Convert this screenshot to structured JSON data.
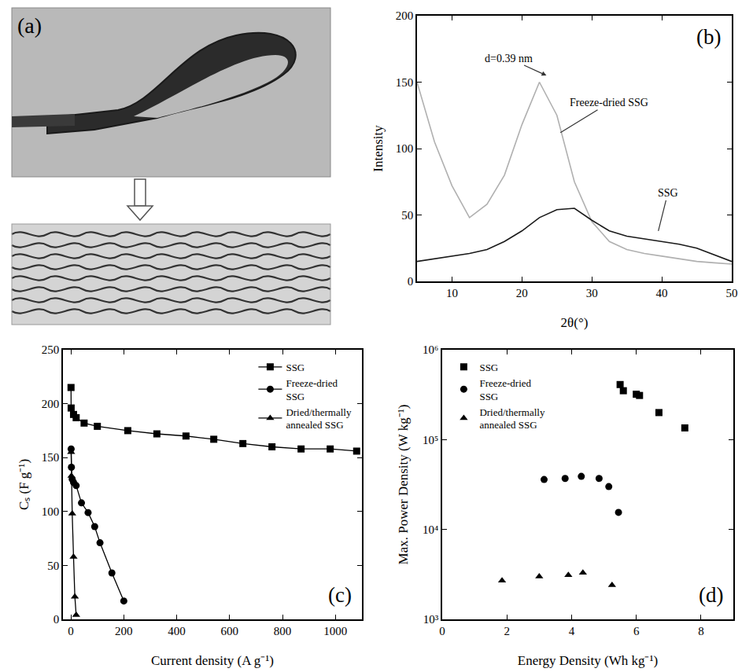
{
  "chart_data": [
    {
      "type": "diagram",
      "annotations": [
        "(a)"
      ]
    },
    {
      "type": "line",
      "x_label": "2θ(°)",
      "y_label": "Intensity",
      "x": [
        5,
        7.5,
        10,
        12.5,
        15,
        17.5,
        20,
        22.5,
        25,
        27.5,
        30,
        32.5,
        35,
        37.5,
        40,
        42.5,
        45,
        47.5,
        50
      ],
      "series": [
        {
          "name": "Freeze-dried SSG",
          "color": "#b0b0b0",
          "values": [
            150,
            105,
            72,
            48,
            58,
            80,
            118,
            150,
            125,
            75,
            45,
            30,
            24,
            21,
            19,
            17,
            15,
            14,
            13
          ]
        },
        {
          "name": "SSG",
          "color": "#1a1a1a",
          "values": [
            15,
            17,
            19,
            21,
            24,
            30,
            38,
            48,
            54,
            55,
            46,
            38,
            34,
            32,
            30,
            28,
            25,
            20,
            15
          ]
        }
      ],
      "xlim": [
        5,
        50
      ],
      "xticks": [
        10,
        20,
        30,
        40,
        50
      ],
      "ylim": [
        0,
        200
      ],
      "yticks": [
        0,
        50,
        100,
        150,
        200
      ],
      "annotations": [
        "(b)",
        {
          "text": "d=0.39 nm",
          "x": 23.5,
          "y": 155
        },
        {
          "text": "Freeze-dried SSG",
          "x": 25.5,
          "y": 112
        },
        {
          "text": "SSG",
          "x": 39.5,
          "y": 38
        }
      ]
    },
    {
      "type": "line",
      "x_label": "Current density (A g⁻¹)",
      "y_label": "Cₛ (F g⁻¹)",
      "series": [
        {
          "name": "SSG",
          "color": "#000000",
          "marker": "square",
          "line_style": "solid",
          "x": [
            0.5,
            1,
            10,
            20,
            50,
            100,
            215,
            325,
            435,
            540,
            650,
            760,
            870,
            980,
            1080
          ],
          "values": [
            215,
            196,
            190,
            187,
            182,
            179,
            175,
            172,
            170,
            167,
            163,
            160,
            158,
            158,
            156
          ]
        },
        {
          "name": "Freeze-dried SSG",
          "color": "#000000",
          "marker": "circle",
          "line_style": "solid",
          "x": [
            1,
            2,
            5,
            10,
            20,
            40,
            65,
            90,
            110,
            155,
            200
          ],
          "values": [
            158,
            141,
            130,
            127,
            124,
            108,
            99,
            86,
            71,
            43,
            17
          ]
        },
        {
          "name": "Dried/thermally annealed SSG",
          "color": "#000000",
          "marker": "triangle-up",
          "line_style": "solid",
          "x": [
            1,
            2,
            5,
            10,
            15,
            20
          ],
          "values": [
            155,
            133,
            98,
            58,
            21,
            4
          ]
        }
      ],
      "xlim": [
        -30,
        1100
      ],
      "xticks": [
        0,
        200,
        400,
        600,
        800,
        1000
      ],
      "ylim": [
        0,
        250
      ],
      "yticks": [
        0,
        50,
        100,
        150,
        200,
        250
      ],
      "legend": "top right",
      "annotations": [
        "(c)"
      ]
    },
    {
      "type": "scatter",
      "x_label": "Energy Density (Wh kg⁻¹)",
      "y_label": "Max. Power Density (W kg⁻¹)",
      "series": [
        {
          "name": "SSG",
          "color": "#000000",
          "marker": "square",
          "x": [
            5.5,
            5.6,
            6.0,
            6.1,
            6.7,
            7.5
          ],
          "values": [
            410000,
            350000,
            320000,
            310000,
            200000,
            135000
          ]
        },
        {
          "name": "Freeze-dried SSG",
          "color": "#000000",
          "marker": "circle",
          "x": [
            3.15,
            3.8,
            4.3,
            4.85,
            5.15,
            5.45
          ],
          "values": [
            36000,
            37000,
            39000,
            37000,
            30000,
            15500
          ]
        },
        {
          "name": "Dried/thermally annealed SSG",
          "color": "#000000",
          "marker": "triangle-up",
          "x": [
            1.85,
            3.0,
            3.9,
            4.35,
            5.25
          ],
          "values": [
            2700,
            3000,
            3100,
            3300,
            2400
          ]
        }
      ],
      "xlim": [
        0,
        9
      ],
      "xticks": [
        0,
        2,
        4,
        6,
        8
      ],
      "ylim": [
        1000,
        1000000
      ],
      "yticks": [
        {
          "value": 1000,
          "label": "10³"
        },
        {
          "value": 10000,
          "label": "10⁴"
        },
        {
          "value": 100000,
          "label": "10⁵"
        },
        {
          "value": 1000000,
          "label": "10⁶"
        }
      ],
      "log": "y",
      "legend": "top left",
      "annotations": [
        "(d)"
      ]
    }
  ]
}
